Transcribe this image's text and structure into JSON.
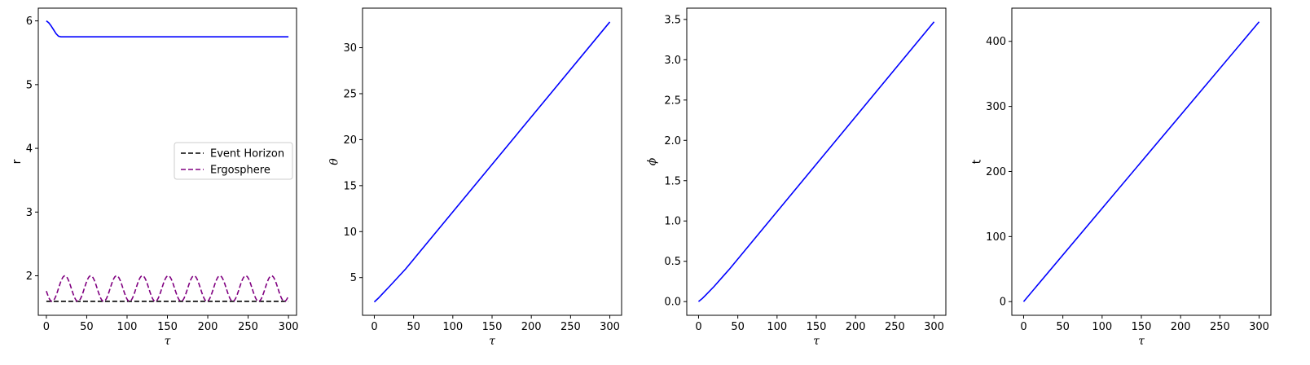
{
  "chart_data": [
    {
      "type": "line",
      "xlabel": "τ",
      "ylabel": "r",
      "xlim": [
        -10,
        310
      ],
      "ylim": [
        1.38,
        6.2
      ],
      "xticks": [
        0,
        50,
        100,
        150,
        200,
        250,
        300
      ],
      "yticks": [
        2,
        3,
        4,
        5,
        6
      ],
      "legend_position": "center-right",
      "series": [
        {
          "name": "",
          "color": "#0000ff",
          "style": "solid",
          "x": [
            0,
            3,
            6,
            9,
            12,
            15,
            18,
            25,
            50,
            100,
            150,
            200,
            250,
            300
          ],
          "y": [
            6.0,
            5.97,
            5.92,
            5.86,
            5.8,
            5.76,
            5.75,
            5.75,
            5.75,
            5.75,
            5.75,
            5.75,
            5.75,
            5.75
          ]
        },
        {
          "name": "Event Horizon",
          "color": "#000000",
          "style": "dashed",
          "x": [
            0,
            300
          ],
          "y": [
            1.6,
            1.6
          ]
        },
        {
          "name": "Ergosphere",
          "color": "#800080",
          "style": "dashed",
          "generator": "1.8 + 0.2*cos(2*pi*(x-23)/32)",
          "x_range": [
            0,
            300
          ]
        }
      ]
    },
    {
      "type": "line",
      "xlabel": "τ",
      "ylabel": "θ",
      "xlim": [
        -15,
        315
      ],
      "ylim": [
        0.9,
        34.3
      ],
      "xticks": [
        0,
        50,
        100,
        150,
        200,
        250,
        300
      ],
      "yticks": [
        5,
        10,
        15,
        20,
        25,
        30
      ],
      "series": [
        {
          "name": "",
          "color": "#0000ff",
          "style": "solid",
          "x": [
            0,
            5,
            10,
            20,
            40,
            300
          ],
          "y": [
            2.35,
            2.75,
            3.2,
            4.1,
            5.95,
            32.8
          ]
        }
      ]
    },
    {
      "type": "line",
      "xlabel": "τ",
      "ylabel": "ϕ",
      "xlim": [
        -15,
        315
      ],
      "ylim": [
        -0.17,
        3.64
      ],
      "xticks": [
        0,
        50,
        100,
        150,
        200,
        250,
        300
      ],
      "yticks": [
        0.0,
        0.5,
        1.0,
        1.5,
        2.0,
        2.5,
        3.0,
        3.5
      ],
      "series": [
        {
          "name": "",
          "color": "#0000ff",
          "style": "solid",
          "x": [
            0,
            5,
            10,
            20,
            40,
            300
          ],
          "y": [
            0.0,
            0.04,
            0.09,
            0.19,
            0.41,
            3.47
          ]
        }
      ]
    },
    {
      "type": "line",
      "xlabel": "τ",
      "ylabel": "t",
      "xlim": [
        -15,
        315
      ],
      "ylim": [
        -21,
        451
      ],
      "xticks": [
        0,
        50,
        100,
        150,
        200,
        250,
        300
      ],
      "yticks": [
        0,
        100,
        200,
        300,
        400
      ],
      "series": [
        {
          "name": "",
          "color": "#0000ff",
          "style": "solid",
          "x": [
            0,
            300
          ],
          "y": [
            0,
            430
          ]
        }
      ]
    }
  ]
}
